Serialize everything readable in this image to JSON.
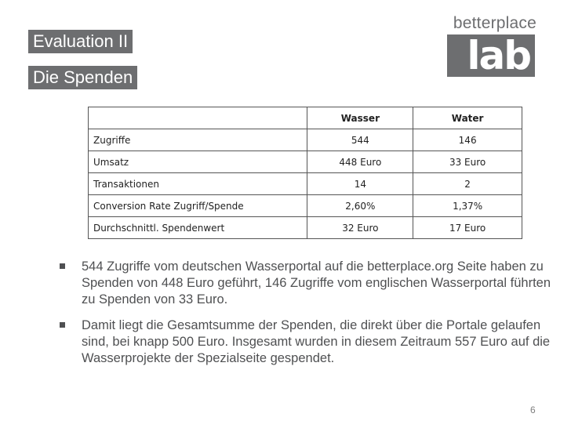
{
  "header": {
    "title1": "Evaluation II",
    "title2": "Die Spenden"
  },
  "logo": {
    "word": "betterplace",
    "box_text": "lab",
    "icon": "betterplace-lab-logo"
  },
  "table": {
    "headers": [
      "",
      "Wasser",
      "Water"
    ],
    "rows": [
      [
        "Zugriffe",
        "544",
        "146"
      ],
      [
        "Umsatz",
        "448 Euro",
        "33 Euro"
      ],
      [
        "Transaktionen",
        "14",
        "2"
      ],
      [
        "Conversion Rate Zugriff/Spende",
        "2,60%",
        "1,37%"
      ],
      [
        "Durchschnittl. Spendenwert",
        "32 Euro",
        "17 Euro"
      ]
    ]
  },
  "bullets": [
    "544 Zugriffe vom deutschen Wasserportal auf die betterplace.org Seite haben zu Spenden von 448 Euro geführt, 146 Zugriffe vom englischen Wasserportal führten zu Spenden von 33 Euro.",
    "Damit liegt die Gesamtsumme der Spenden, die direkt über die Portale gelaufen sind, bei knapp 500 Euro. Insgesamt wurden in diesem Zeitraum 557 Euro auf die Wasserprojekte der Spezialseite gespendet."
  ],
  "page_number": "6",
  "colors": {
    "title_bg": "#6d6e70",
    "text": "#4f5052"
  }
}
